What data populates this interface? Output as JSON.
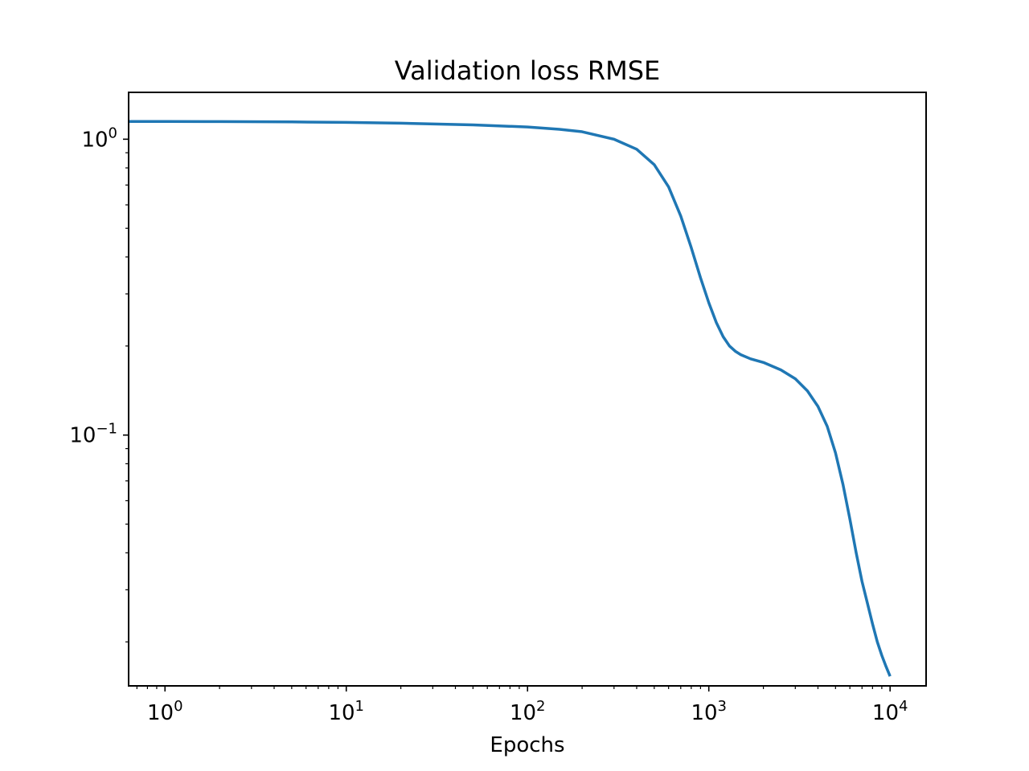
{
  "chart_data": {
    "type": "line",
    "title": "Validation loss RMSE",
    "xlabel": "Epochs",
    "ylabel": "",
    "xscale": "log",
    "yscale": "log",
    "xlim": [
      0.63,
      15800
    ],
    "ylim": [
      0.0142,
      1.44
    ],
    "grid": false,
    "legend": "none",
    "x_ticks": [
      {
        "value": 1,
        "base": "10",
        "exp": "0"
      },
      {
        "value": 10,
        "base": "10",
        "exp": "1"
      },
      {
        "value": 100,
        "base": "10",
        "exp": "2"
      },
      {
        "value": 1000,
        "base": "10",
        "exp": "3"
      },
      {
        "value": 10000,
        "base": "10",
        "exp": "4"
      }
    ],
    "y_ticks": [
      {
        "value": 1,
        "base": "10",
        "exp": "0"
      },
      {
        "value": 0.1,
        "base": "10",
        "exp": "−1"
      }
    ],
    "series": [
      {
        "color": "#1f77b4",
        "x": [
          0.63,
          1,
          2,
          5,
          10,
          20,
          50,
          100,
          150,
          200,
          300,
          400,
          500,
          600,
          700,
          800,
          900,
          1000,
          1100,
          1200,
          1300,
          1400,
          1500,
          1700,
          2000,
          2500,
          3000,
          3500,
          4000,
          4500,
          5000,
          5500,
          6000,
          6500,
          7000,
          7500,
          8000,
          8500,
          9000,
          9500,
          10000
        ],
        "values": [
          1.148,
          1.148,
          1.147,
          1.144,
          1.14,
          1.133,
          1.118,
          1.1,
          1.08,
          1.06,
          1.0,
          0.925,
          0.82,
          0.69,
          0.55,
          0.43,
          0.34,
          0.28,
          0.24,
          0.215,
          0.2,
          0.192,
          0.187,
          0.181,
          0.176,
          0.166,
          0.155,
          0.141,
          0.125,
          0.107,
          0.087,
          0.068,
          0.052,
          0.04,
          0.032,
          0.027,
          0.023,
          0.02,
          0.018,
          0.0165,
          0.0153
        ]
      }
    ]
  }
}
